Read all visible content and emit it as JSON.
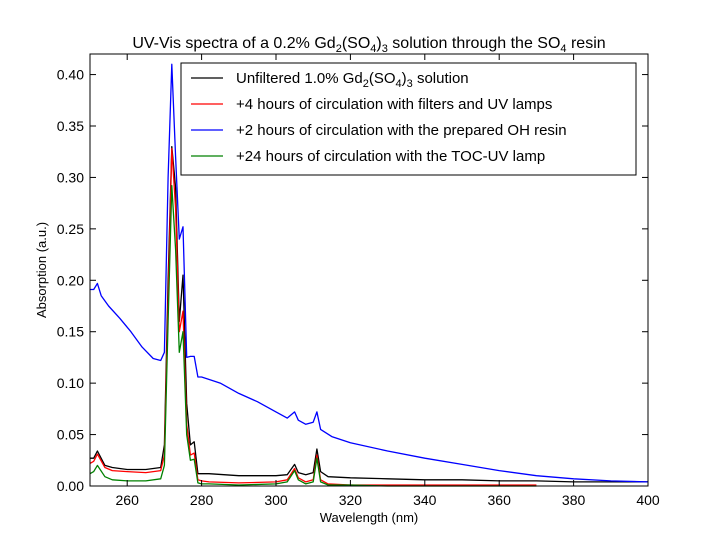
{
  "chart_data": {
    "type": "line",
    "title": {
      "prefix": "UV-Vis spectra of a 0.2% Gd",
      "sub1": "2",
      "mid1": "(SO",
      "sub2": "4",
      "mid2": ")",
      "sub3": "3",
      "mid3": " solution through the SO",
      "sub4": "4",
      "suffix": " resin"
    },
    "xlabel": "Wavelength (nm)",
    "ylabel": "Absorption (a.u.)",
    "xlim": [
      250,
      400
    ],
    "ylim": [
      0,
      0.42
    ],
    "xticks": [
      260,
      280,
      300,
      320,
      340,
      360,
      380,
      400
    ],
    "xtick_labels": [
      "260",
      "280",
      "300",
      "320",
      "340",
      "360",
      "380",
      "400"
    ],
    "yticks": [
      0.0,
      0.05,
      0.1,
      0.15,
      0.2,
      0.25,
      0.3,
      0.35,
      0.4
    ],
    "ytick_labels": [
      "0.00",
      "0.05",
      "0.10",
      "0.15",
      "0.20",
      "0.25",
      "0.30",
      "0.35",
      "0.40"
    ],
    "grid": false,
    "legend_position": "top-right",
    "series": [
      {
        "name": "Unfiltered 1.0% Gd2(SO4)3 solution",
        "label_parts": [
          "Unfiltered 1.0% Gd",
          "2",
          "(SO",
          "4",
          ")",
          "3",
          " solution"
        ],
        "color": "#000000",
        "x": [
          250,
          251,
          252,
          254,
          256,
          260,
          265,
          269,
          270,
          271,
          272,
          273,
          274,
          275,
          276,
          277,
          278,
          279,
          280,
          282,
          290,
          300,
          303,
          305,
          306,
          308,
          310,
          311,
          312,
          314,
          320,
          330,
          340,
          350,
          360,
          370,
          380,
          390,
          400
        ],
        "y": [
          0.027,
          0.027,
          0.034,
          0.02,
          0.018,
          0.016,
          0.016,
          0.018,
          0.04,
          0.2,
          0.33,
          0.29,
          0.16,
          0.205,
          0.08,
          0.04,
          0.043,
          0.012,
          0.012,
          0.012,
          0.01,
          0.01,
          0.011,
          0.021,
          0.013,
          0.011,
          0.013,
          0.036,
          0.014,
          0.009,
          0.008,
          0.007,
          0.006,
          0.006,
          0.005,
          0.005,
          0.004,
          0.004,
          0.004
        ]
      },
      {
        "name": "+4 hours of circulation with filters and UV lamps",
        "label_parts": [
          "+4 hours of circulation with filters and UV lamps"
        ],
        "color": "#ff0000",
        "x": [
          250,
          251,
          252,
          254,
          256,
          260,
          265,
          269,
          270,
          271,
          272,
          273,
          274,
          275,
          276,
          277,
          278,
          279,
          280,
          282,
          290,
          300,
          303,
          305,
          306,
          308,
          310,
          311,
          312,
          314,
          320,
          330,
          340,
          350,
          360,
          370
        ],
        "y": [
          0.022,
          0.024,
          0.031,
          0.018,
          0.015,
          0.014,
          0.013,
          0.015,
          0.03,
          0.18,
          0.328,
          0.27,
          0.15,
          0.17,
          0.06,
          0.03,
          0.032,
          0.006,
          0.005,
          0.004,
          0.003,
          0.004,
          0.006,
          0.017,
          0.008,
          0.004,
          0.006,
          0.03,
          0.006,
          0.002,
          0.001,
          0.001,
          0.001,
          0.001,
          0.001,
          0.001
        ]
      },
      {
        "name": "+2 hours of circulation with the prepared OH resin",
        "label_parts": [
          "+2 hours of circulation with the prepared OH resin"
        ],
        "color": "#0000ff",
        "x": [
          250,
          251,
          252,
          253,
          255,
          258,
          261,
          264,
          267,
          269,
          270,
          271,
          272,
          273,
          274,
          275,
          276,
          277,
          278,
          279,
          280,
          285,
          290,
          295,
          300,
          303,
          305,
          306,
          308,
          310,
          311,
          312,
          315,
          320,
          330,
          340,
          350,
          360,
          370,
          380,
          390,
          400
        ],
        "y": [
          0.191,
          0.191,
          0.197,
          0.185,
          0.175,
          0.163,
          0.15,
          0.135,
          0.124,
          0.122,
          0.13,
          0.3,
          0.41,
          0.32,
          0.24,
          0.252,
          0.125,
          0.126,
          0.126,
          0.106,
          0.106,
          0.1,
          0.09,
          0.082,
          0.072,
          0.066,
          0.072,
          0.064,
          0.06,
          0.062,
          0.072,
          0.055,
          0.048,
          0.042,
          0.034,
          0.027,
          0.021,
          0.015,
          0.01,
          0.007,
          0.005,
          0.004
        ]
      },
      {
        "name": "+24 hours of circulation with the TOC-UV lamp",
        "label_parts": [
          "+24 hours of circulation with the TOC-UV lamp"
        ],
        "color": "#008000",
        "x": [
          250,
          251,
          252,
          254,
          256,
          260,
          265,
          269,
          270,
          271,
          272,
          273,
          274,
          275,
          276,
          277,
          278,
          279,
          280,
          282,
          290,
          300,
          303,
          305,
          306,
          308,
          310,
          311,
          312,
          314,
          320,
          330,
          340,
          350,
          360,
          370
        ],
        "y": [
          0.012,
          0.014,
          0.02,
          0.009,
          0.006,
          0.005,
          0.005,
          0.007,
          0.02,
          0.16,
          0.292,
          0.23,
          0.13,
          0.15,
          0.05,
          0.025,
          0.026,
          0.003,
          0.002,
          0.002,
          0.001,
          0.002,
          0.004,
          0.015,
          0.006,
          0.002,
          0.004,
          0.027,
          0.004,
          0.001,
          0.001,
          0.0,
          0.0,
          0.0,
          0.0,
          0.0
        ]
      }
    ]
  }
}
